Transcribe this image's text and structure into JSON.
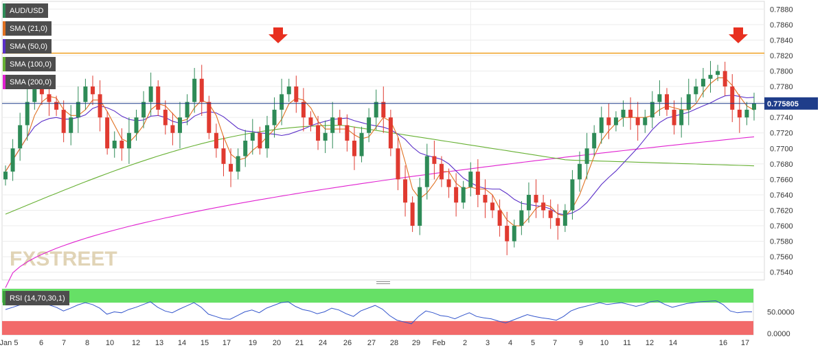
{
  "chart_data": {
    "type": "candlestick",
    "title": "AUD/USD",
    "last_price": "0.775805",
    "ylim": [
      0.753,
      0.789
    ],
    "y_ticks": [
      "0.7880",
      "0.7860",
      "0.7840",
      "0.7820",
      "0.7800",
      "0.7780",
      "0.7760",
      "0.7740",
      "0.7720",
      "0.7700",
      "0.7680",
      "0.7660",
      "0.7640",
      "0.7620",
      "0.7600",
      "0.7580",
      "0.7560",
      "0.7540"
    ],
    "x_labels": [
      "Jan 5",
      "6",
      "7",
      "8",
      "10",
      "12",
      "13",
      "14",
      "15",
      "17",
      "19",
      "20",
      "21",
      "24",
      "26",
      "27",
      "28",
      "29",
      "Feb",
      "2",
      "3",
      "4",
      "5",
      "7",
      "9",
      "10",
      "11",
      "12",
      "14",
      "16",
      "17"
    ],
    "resistance_level": 0.7823,
    "arrows_at": [
      "20",
      "16"
    ],
    "close": [
      0.767,
      0.77,
      0.773,
      0.776,
      0.778,
      0.777,
      0.776,
      0.775,
      0.772,
      0.774,
      0.776,
      0.778,
      0.777,
      0.774,
      0.77,
      0.771,
      0.77,
      0.772,
      0.774,
      0.776,
      0.778,
      0.775,
      0.773,
      0.772,
      0.774,
      0.776,
      0.779,
      0.776,
      0.772,
      0.77,
      0.768,
      0.767,
      0.769,
      0.771,
      0.772,
      0.77,
      0.773,
      0.775,
      0.777,
      0.778,
      0.776,
      0.774,
      0.773,
      0.771,
      0.772,
      0.774,
      0.773,
      0.771,
      0.769,
      0.772,
      0.774,
      0.776,
      0.774,
      0.77,
      0.766,
      0.763,
      0.76,
      0.765,
      0.769,
      0.768,
      0.766,
      0.765,
      0.763,
      0.765,
      0.767,
      0.764,
      0.763,
      0.762,
      0.76,
      0.758,
      0.76,
      0.762,
      0.764,
      0.763,
      0.762,
      0.761,
      0.76,
      0.762,
      0.766,
      0.768,
      0.77,
      0.772,
      0.774,
      0.773,
      0.774,
      0.775,
      0.774,
      0.773,
      0.774,
      0.776,
      0.777,
      0.775,
      0.773,
      0.775,
      0.777,
      0.778,
      0.779,
      0.7795,
      0.78,
      0.778,
      0.775,
      0.774,
      0.775,
      0.7758
    ],
    "rsi": {
      "label": "RSI (14,70,30,1)",
      "current": "50.0000",
      "y_ticks": [
        "50.0000",
        "0.0000"
      ],
      "overbought": 70,
      "oversold": 30,
      "values": [
        55,
        60,
        65,
        70,
        72,
        68,
        65,
        60,
        52,
        58,
        65,
        70,
        66,
        58,
        45,
        50,
        48,
        55,
        60,
        66,
        72,
        60,
        52,
        48,
        56,
        63,
        70,
        60,
        45,
        40,
        35,
        34,
        42,
        50,
        54,
        48,
        58,
        64,
        70,
        72,
        62,
        55,
        52,
        46,
        50,
        58,
        54,
        46,
        40,
        52,
        58,
        64,
        56,
        42,
        32,
        28,
        24,
        40,
        52,
        48,
        42,
        40,
        35,
        42,
        48,
        40,
        37,
        35,
        30,
        26,
        32,
        38,
        44,
        40,
        37,
        35,
        32,
        40,
        52,
        58,
        62,
        66,
        70,
        66,
        68,
        70,
        66,
        62,
        66,
        72,
        74,
        66,
        60,
        64,
        68,
        70,
        72,
        73,
        74,
        66,
        52,
        48,
        50,
        50
      ]
    },
    "series": [
      {
        "name": "AUD/USD",
        "color": "#2e8b57"
      },
      {
        "name": "SMA (21,0)",
        "color": "#e07020"
      },
      {
        "name": "SMA (50,0)",
        "color": "#5a2ec8"
      },
      {
        "name": "SMA (100,0)",
        "color": "#66b032"
      },
      {
        "name": "SMA (200,0)",
        "color": "#e020d0"
      }
    ]
  },
  "watermark": "FXSTREET",
  "colors": {
    "up": "#2e8b57",
    "down": "#e03a30",
    "rsi_line": "#3355cc",
    "overbought_zone": "#66e066",
    "oversold_zone": "#f26a6a",
    "resistance": "#f0a020",
    "arrow": "#e83020",
    "price_line": "#1f3d8a"
  }
}
